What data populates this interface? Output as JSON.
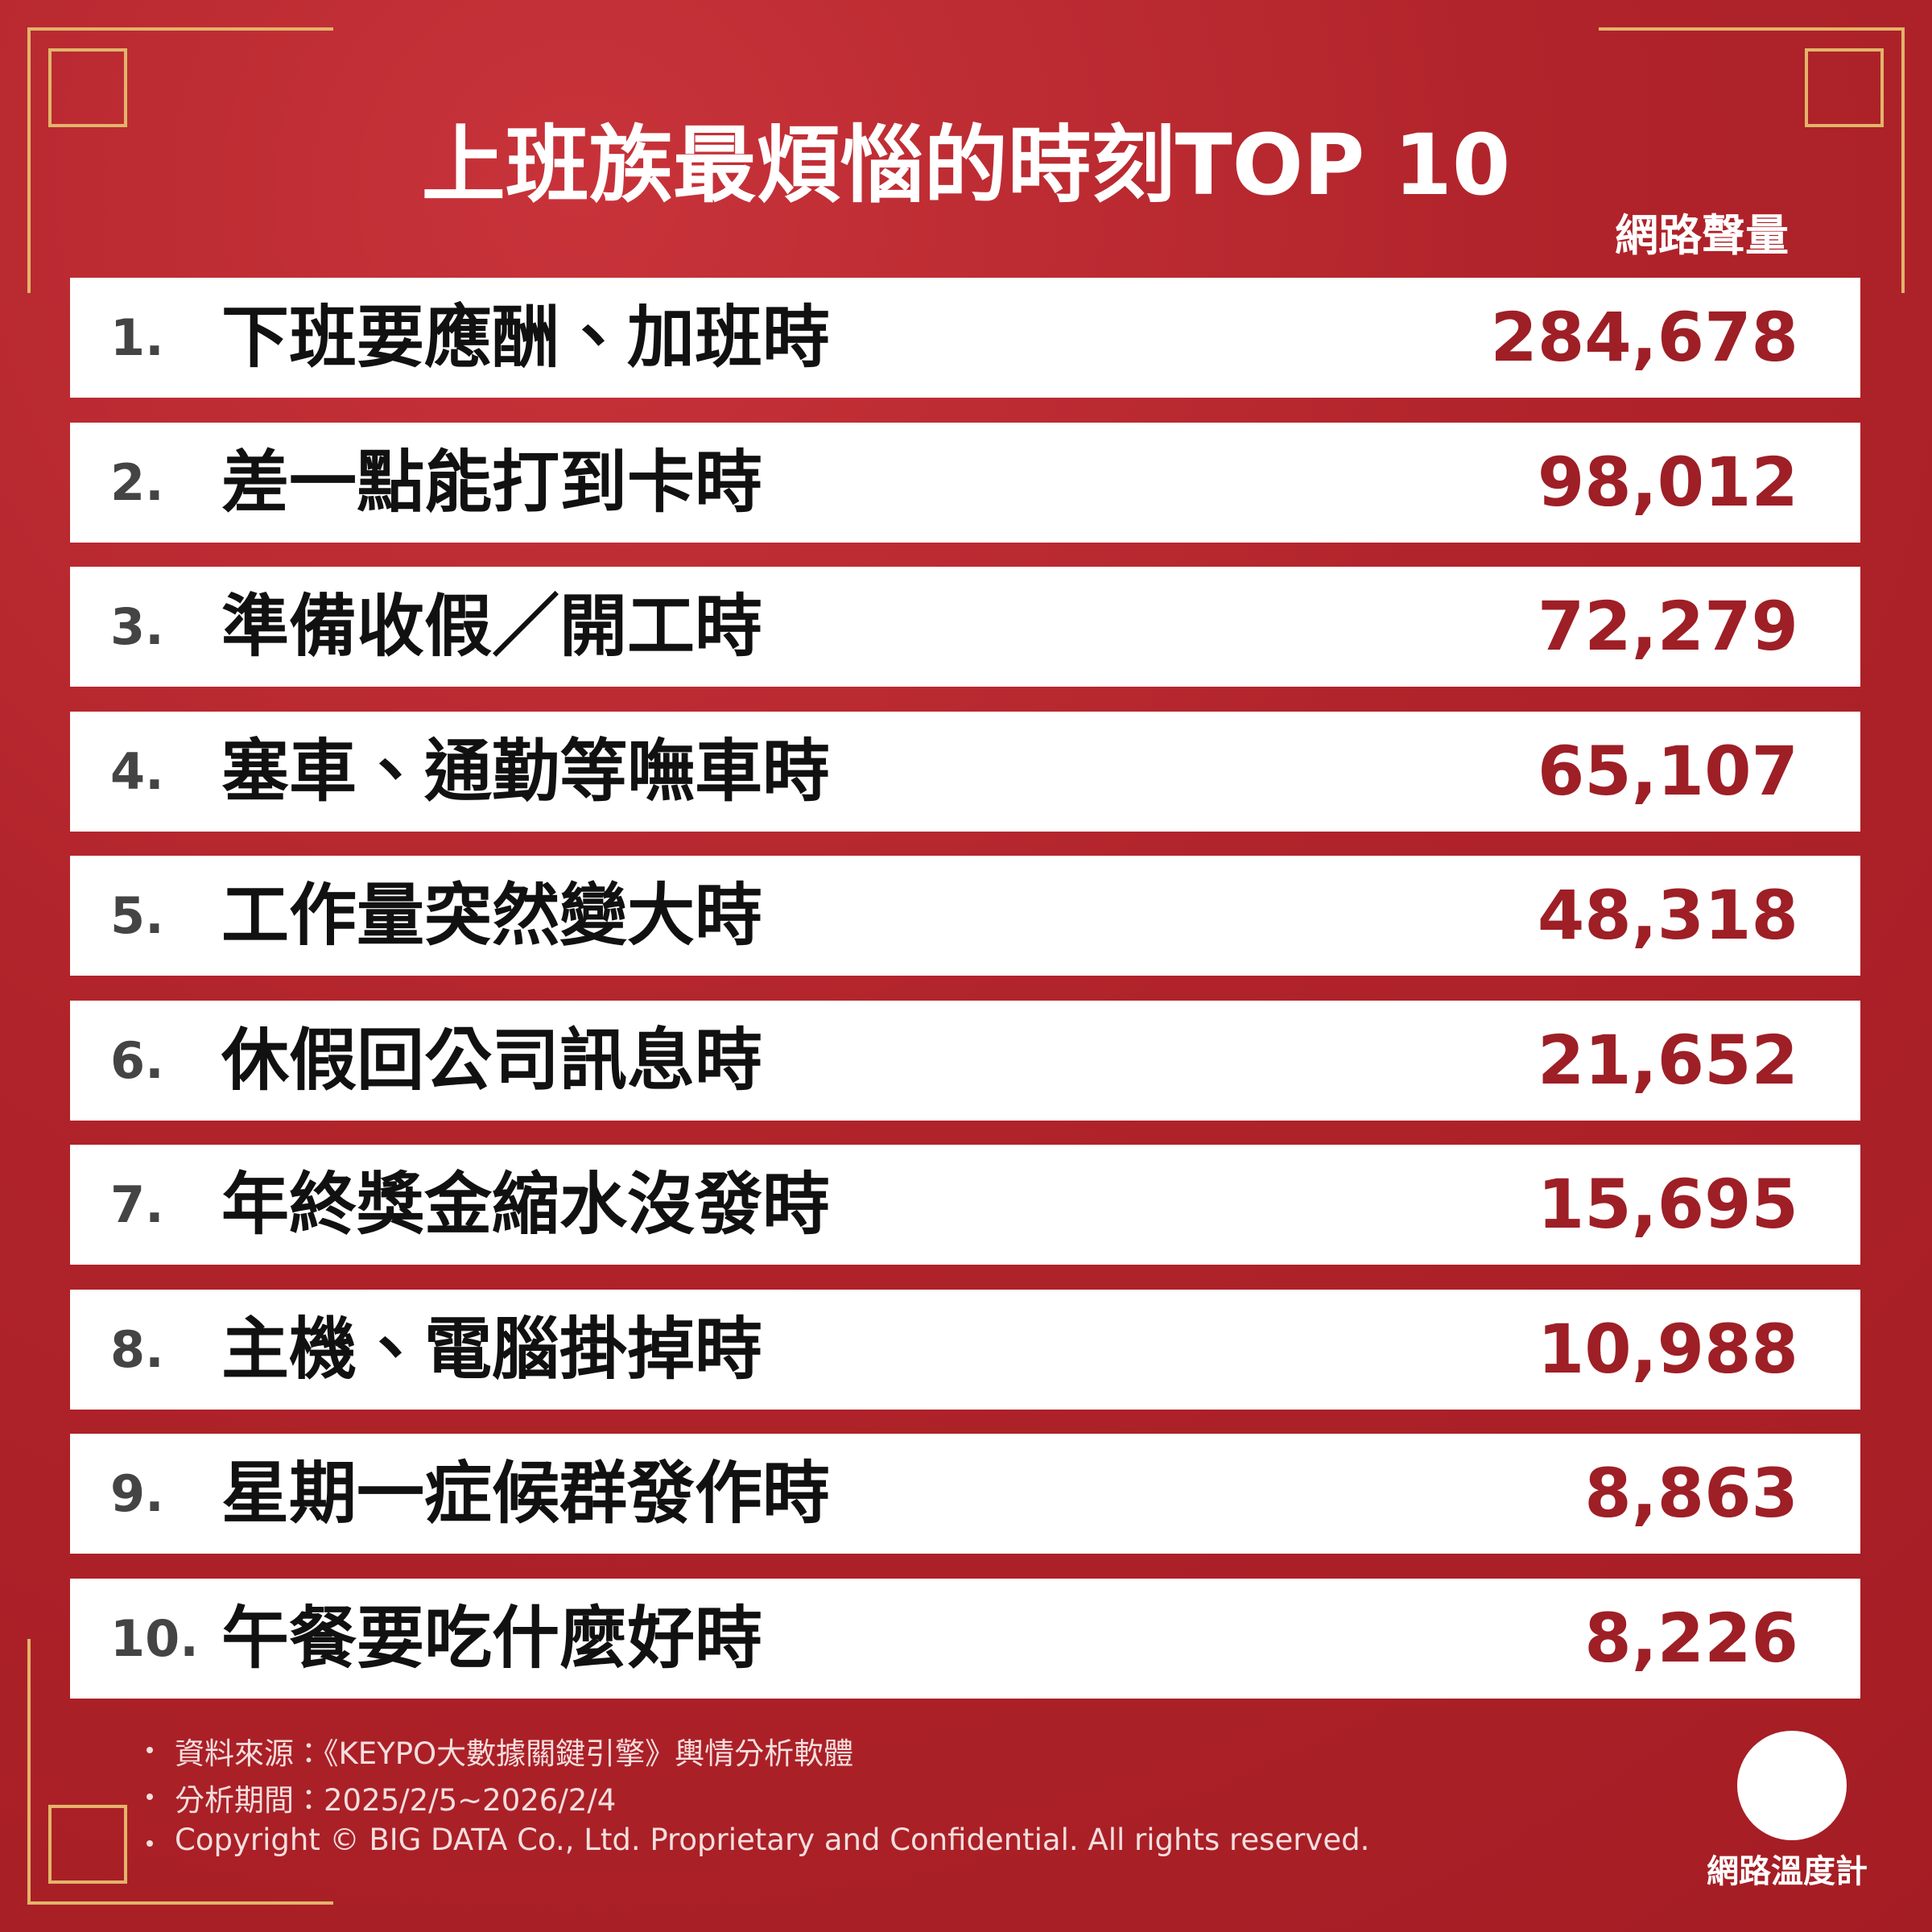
{
  "header": {
    "title": "上班族最煩惱的時刻TOP 10",
    "column_label": "網路聲量"
  },
  "rows": [
    {
      "rank": "1.",
      "label": "下班要應酬、加班時",
      "value": "284,678"
    },
    {
      "rank": "2.",
      "label": "差一點能打到卡時",
      "value": "98,012"
    },
    {
      "rank": "3.",
      "label": "準備收假／開工時",
      "value": "72,279"
    },
    {
      "rank": "4.",
      "label": "塞車、通勤等嘸車時",
      "value": "65,107"
    },
    {
      "rank": "5.",
      "label": "工作量突然變大時",
      "value": "48,318"
    },
    {
      "rank": "6.",
      "label": "休假回公司訊息時",
      "value": "21,652"
    },
    {
      "rank": "7.",
      "label": "年終獎金縮水沒發時",
      "value": "15,695"
    },
    {
      "rank": "8.",
      "label": "主機、電腦掛掉時",
      "value": "10,988"
    },
    {
      "rank": "9.",
      "label": "星期一症候群發作時",
      "value": "8,863"
    },
    {
      "rank": "10.",
      "label": "午餐要吃什麼好時",
      "value": "8,226"
    }
  ],
  "footnotes": [
    "資料來源：《KEYPO大數據關鍵引擎》輿情分析軟體",
    "分析期間：2025/2/5~2026/2/4",
    "Copyright © BIG DATA Co., Ltd. Proprietary and Confidential. All rights reserved."
  ],
  "logo": "網路溫度計"
}
